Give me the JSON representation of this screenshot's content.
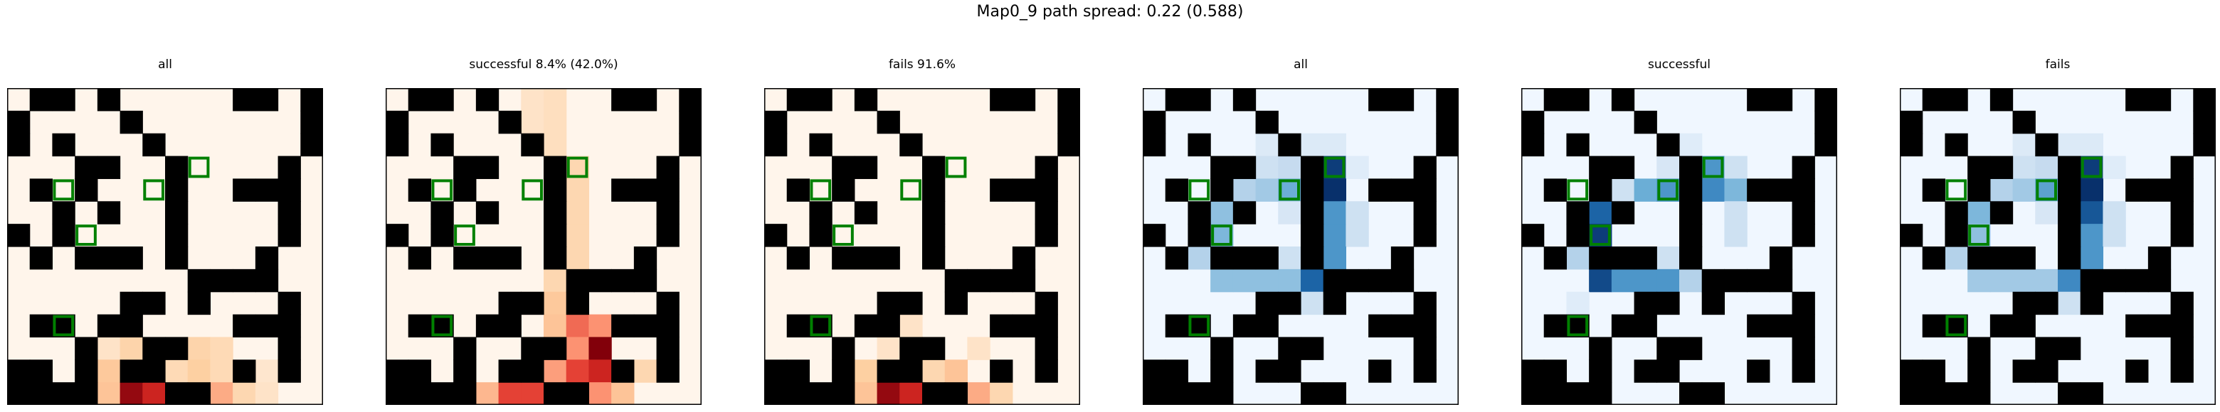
{
  "title": "Map0_9 path spread: 0.22 (0.588)",
  "colors": {
    "wall": "#000000",
    "marker": "#008000",
    "frame": "#000000"
  },
  "chart_data": {
    "type": "heatmap",
    "grid": {
      "rows": 14,
      "cols": 14,
      "walls": [
        [
          0,
          1
        ],
        [
          0,
          2
        ],
        [
          0,
          4
        ],
        [
          0,
          10
        ],
        [
          0,
          11
        ],
        [
          0,
          13
        ],
        [
          1,
          0
        ],
        [
          1,
          5
        ],
        [
          1,
          13
        ],
        [
          2,
          0
        ],
        [
          2,
          2
        ],
        [
          2,
          6
        ],
        [
          2,
          13
        ],
        [
          3,
          3
        ],
        [
          3,
          4
        ],
        [
          3,
          7
        ],
        [
          3,
          12
        ],
        [
          4,
          1
        ],
        [
          4,
          3
        ],
        [
          4,
          7
        ],
        [
          4,
          10
        ],
        [
          4,
          11
        ],
        [
          4,
          12
        ],
        [
          5,
          2
        ],
        [
          5,
          4
        ],
        [
          5,
          7
        ],
        [
          5,
          12
        ],
        [
          6,
          0
        ],
        [
          6,
          2
        ],
        [
          6,
          7
        ],
        [
          6,
          12
        ],
        [
          7,
          1
        ],
        [
          7,
          3
        ],
        [
          7,
          4
        ],
        [
          7,
          5
        ],
        [
          7,
          7
        ],
        [
          7,
          11
        ],
        [
          8,
          8
        ],
        [
          8,
          9
        ],
        [
          8,
          10
        ],
        [
          8,
          11
        ],
        [
          9,
          5
        ],
        [
          9,
          6
        ],
        [
          9,
          8
        ],
        [
          9,
          12
        ],
        [
          10,
          1
        ],
        [
          10,
          2
        ],
        [
          10,
          4
        ],
        [
          10,
          5
        ],
        [
          10,
          10
        ],
        [
          10,
          11
        ],
        [
          10,
          12
        ],
        [
          11,
          3
        ],
        [
          11,
          6
        ],
        [
          11,
          7
        ],
        [
          11,
          12
        ],
        [
          12,
          0
        ],
        [
          12,
          1
        ],
        [
          12,
          3
        ],
        [
          12,
          5
        ],
        [
          12,
          6
        ],
        [
          12,
          10
        ],
        [
          12,
          12
        ],
        [
          13,
          0
        ],
        [
          13,
          1
        ],
        [
          13,
          2
        ],
        [
          13,
          3
        ],
        [
          13,
          7
        ],
        [
          13,
          8
        ]
      ],
      "markers": [
        [
          3,
          8
        ],
        [
          4,
          2
        ],
        [
          4,
          6
        ],
        [
          6,
          3
        ],
        [
          10,
          2
        ]
      ]
    },
    "panels": [
      {
        "title": "all",
        "colormap": "reds",
        "cells": [
          [
            11,
            4,
            0.12
          ],
          [
            11,
            5,
            0.22
          ],
          [
            11,
            8,
            0.22
          ],
          [
            11,
            9,
            0.18
          ],
          [
            12,
            4,
            0.28
          ],
          [
            12,
            7,
            0.18
          ],
          [
            12,
            8,
            0.25
          ],
          [
            12,
            9,
            0.18
          ],
          [
            12,
            11,
            0.1
          ],
          [
            13,
            4,
            0.3
          ],
          [
            13,
            5,
            0.95
          ],
          [
            13,
            6,
            0.8
          ],
          [
            13,
            7,
            0.65
          ],
          [
            13,
            9,
            0.4
          ],
          [
            13,
            10,
            0.2
          ],
          [
            13,
            11,
            0.12
          ]
        ]
      },
      {
        "title": "successful 8.4% (42.0%)",
        "colormap": "reds",
        "cells": [
          [
            0,
            6,
            0.12
          ],
          [
            0,
            7,
            0.15
          ],
          [
            1,
            6,
            0.12
          ],
          [
            1,
            7,
            0.15
          ],
          [
            2,
            7,
            0.15
          ],
          [
            3,
            8,
            0.2
          ],
          [
            4,
            8,
            0.2
          ],
          [
            5,
            8,
            0.2
          ],
          [
            6,
            8,
            0.2
          ],
          [
            7,
            8,
            0.2
          ],
          [
            8,
            7,
            0.2
          ],
          [
            9,
            7,
            0.28
          ],
          [
            10,
            7,
            0.3
          ],
          [
            10,
            8,
            0.6
          ],
          [
            10,
            9,
            0.5
          ],
          [
            11,
            8,
            0.5
          ],
          [
            11,
            9,
            1.0
          ],
          [
            12,
            7,
            0.45
          ],
          [
            12,
            8,
            0.7
          ],
          [
            12,
            9,
            0.8
          ],
          [
            12,
            11,
            0.2
          ],
          [
            13,
            4,
            0.35
          ],
          [
            13,
            5,
            0.7
          ],
          [
            13,
            6,
            0.7
          ],
          [
            13,
            9,
            0.5
          ],
          [
            13,
            10,
            0.3
          ]
        ]
      },
      {
        "title": "fails 91.6%",
        "colormap": "reds",
        "cells": [
          [
            10,
            6,
            0.12
          ],
          [
            11,
            5,
            0.12
          ],
          [
            11,
            9,
            0.12
          ],
          [
            12,
            4,
            0.25
          ],
          [
            12,
            7,
            0.2
          ],
          [
            12,
            8,
            0.3
          ],
          [
            13,
            4,
            0.3
          ],
          [
            13,
            5,
            0.95
          ],
          [
            13,
            6,
            0.8
          ],
          [
            13,
            7,
            0.65
          ],
          [
            13,
            9,
            0.4
          ],
          [
            13,
            10,
            0.2
          ]
        ]
      },
      {
        "title": "all",
        "colormap": "blues",
        "cells": [
          [
            2,
            5,
            0.12
          ],
          [
            2,
            6,
            0.1
          ],
          [
            2,
            7,
            0.12
          ],
          [
            2,
            8,
            0.12
          ],
          [
            3,
            5,
            0.2
          ],
          [
            3,
            6,
            0.25
          ],
          [
            3,
            8,
            0.95
          ],
          [
            3,
            9,
            0.1
          ],
          [
            4,
            4,
            0.3
          ],
          [
            4,
            5,
            0.35
          ],
          [
            4,
            6,
            0.5
          ],
          [
            4,
            7,
            0.85
          ],
          [
            4,
            8,
            1.0
          ],
          [
            5,
            3,
            0.4
          ],
          [
            5,
            6,
            0.15
          ],
          [
            5,
            8,
            0.6
          ],
          [
            5,
            9,
            0.2
          ],
          [
            6,
            3,
            0.45
          ],
          [
            6,
            8,
            0.6
          ],
          [
            6,
            9,
            0.2
          ],
          [
            7,
            2,
            0.3
          ],
          [
            7,
            6,
            0.2
          ],
          [
            7,
            8,
            0.6
          ],
          [
            8,
            3,
            0.4
          ],
          [
            8,
            4,
            0.4
          ],
          [
            8,
            5,
            0.4
          ],
          [
            8,
            6,
            0.4
          ],
          [
            8,
            7,
            0.8
          ],
          [
            9,
            7,
            0.2
          ]
        ]
      },
      {
        "title": "successful",
        "colormap": "blues",
        "cells": [
          [
            2,
            6,
            0.1
          ],
          [
            2,
            7,
            0.1
          ],
          [
            3,
            6,
            0.15
          ],
          [
            3,
            8,
            0.6
          ],
          [
            3,
            9,
            0.2
          ],
          [
            4,
            4,
            0.2
          ],
          [
            4,
            5,
            0.5
          ],
          [
            4,
            6,
            0.6
          ],
          [
            4,
            7,
            0.65
          ],
          [
            4,
            8,
            0.65
          ],
          [
            4,
            9,
            0.45
          ],
          [
            5,
            3,
            0.8
          ],
          [
            5,
            9,
            0.2
          ],
          [
            6,
            3,
            0.95
          ],
          [
            6,
            9,
            0.2
          ],
          [
            7,
            2,
            0.3
          ],
          [
            7,
            3,
            1.0
          ],
          [
            7,
            4,
            0.2
          ],
          [
            7,
            6,
            0.2
          ],
          [
            8,
            3,
            0.9
          ],
          [
            8,
            4,
            0.6
          ],
          [
            8,
            5,
            0.6
          ],
          [
            8,
            6,
            0.6
          ],
          [
            8,
            7,
            0.3
          ],
          [
            9,
            2,
            0.1
          ]
        ]
      },
      {
        "title": "fails",
        "colormap": "blues",
        "cells": [
          [
            2,
            5,
            0.12
          ],
          [
            2,
            6,
            0.1
          ],
          [
            2,
            7,
            0.12
          ],
          [
            2,
            8,
            0.12
          ],
          [
            3,
            5,
            0.2
          ],
          [
            3,
            6,
            0.25
          ],
          [
            3,
            8,
            0.95
          ],
          [
            3,
            9,
            0.1
          ],
          [
            4,
            4,
            0.3
          ],
          [
            4,
            5,
            0.35
          ],
          [
            4,
            6,
            0.55
          ],
          [
            4,
            7,
            0.85
          ],
          [
            4,
            8,
            1.0
          ],
          [
            5,
            3,
            0.45
          ],
          [
            5,
            6,
            0.15
          ],
          [
            5,
            8,
            0.85
          ],
          [
            5,
            9,
            0.2
          ],
          [
            6,
            3,
            0.4
          ],
          [
            6,
            8,
            0.6
          ],
          [
            6,
            9,
            0.2
          ],
          [
            7,
            2,
            0.3
          ],
          [
            7,
            8,
            0.6
          ],
          [
            8,
            3,
            0.35
          ],
          [
            8,
            4,
            0.35
          ],
          [
            8,
            5,
            0.35
          ],
          [
            8,
            6,
            0.35
          ],
          [
            8,
            7,
            0.65
          ],
          [
            9,
            7,
            0.2
          ]
        ]
      }
    ]
  }
}
